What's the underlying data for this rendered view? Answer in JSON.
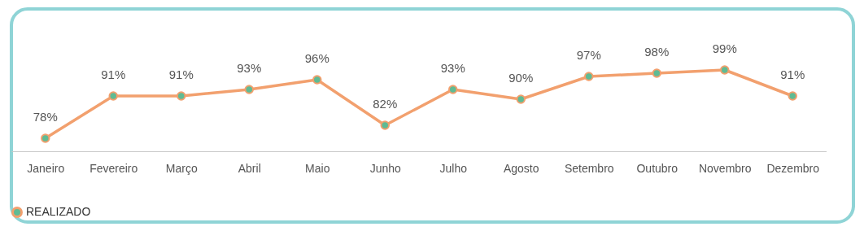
{
  "chart_data": {
    "type": "line",
    "categories": [
      "Janeiro",
      "Fevereiro",
      "Março",
      "Abril",
      "Maio",
      "Junho",
      "Julho",
      "Agosto",
      "Setembro",
      "Outubro",
      "Novembro",
      "Dezembro"
    ],
    "series": [
      {
        "name": "REALIZADO",
        "color": "#f2a06e",
        "values": [
          78,
          91,
          91,
          93,
          96,
          82,
          93,
          90,
          97,
          98,
          99,
          91
        ],
        "value_labels": [
          "78%",
          "91%",
          "91%",
          "93%",
          "96%",
          "82%",
          "93%",
          "90%",
          "97%",
          "98%",
          "99%",
          "91%"
        ]
      }
    ],
    "marker": "circle",
    "line_style": "solid",
    "legend": "bottom",
    "grid": false,
    "tick_labels": "x"
  }
}
